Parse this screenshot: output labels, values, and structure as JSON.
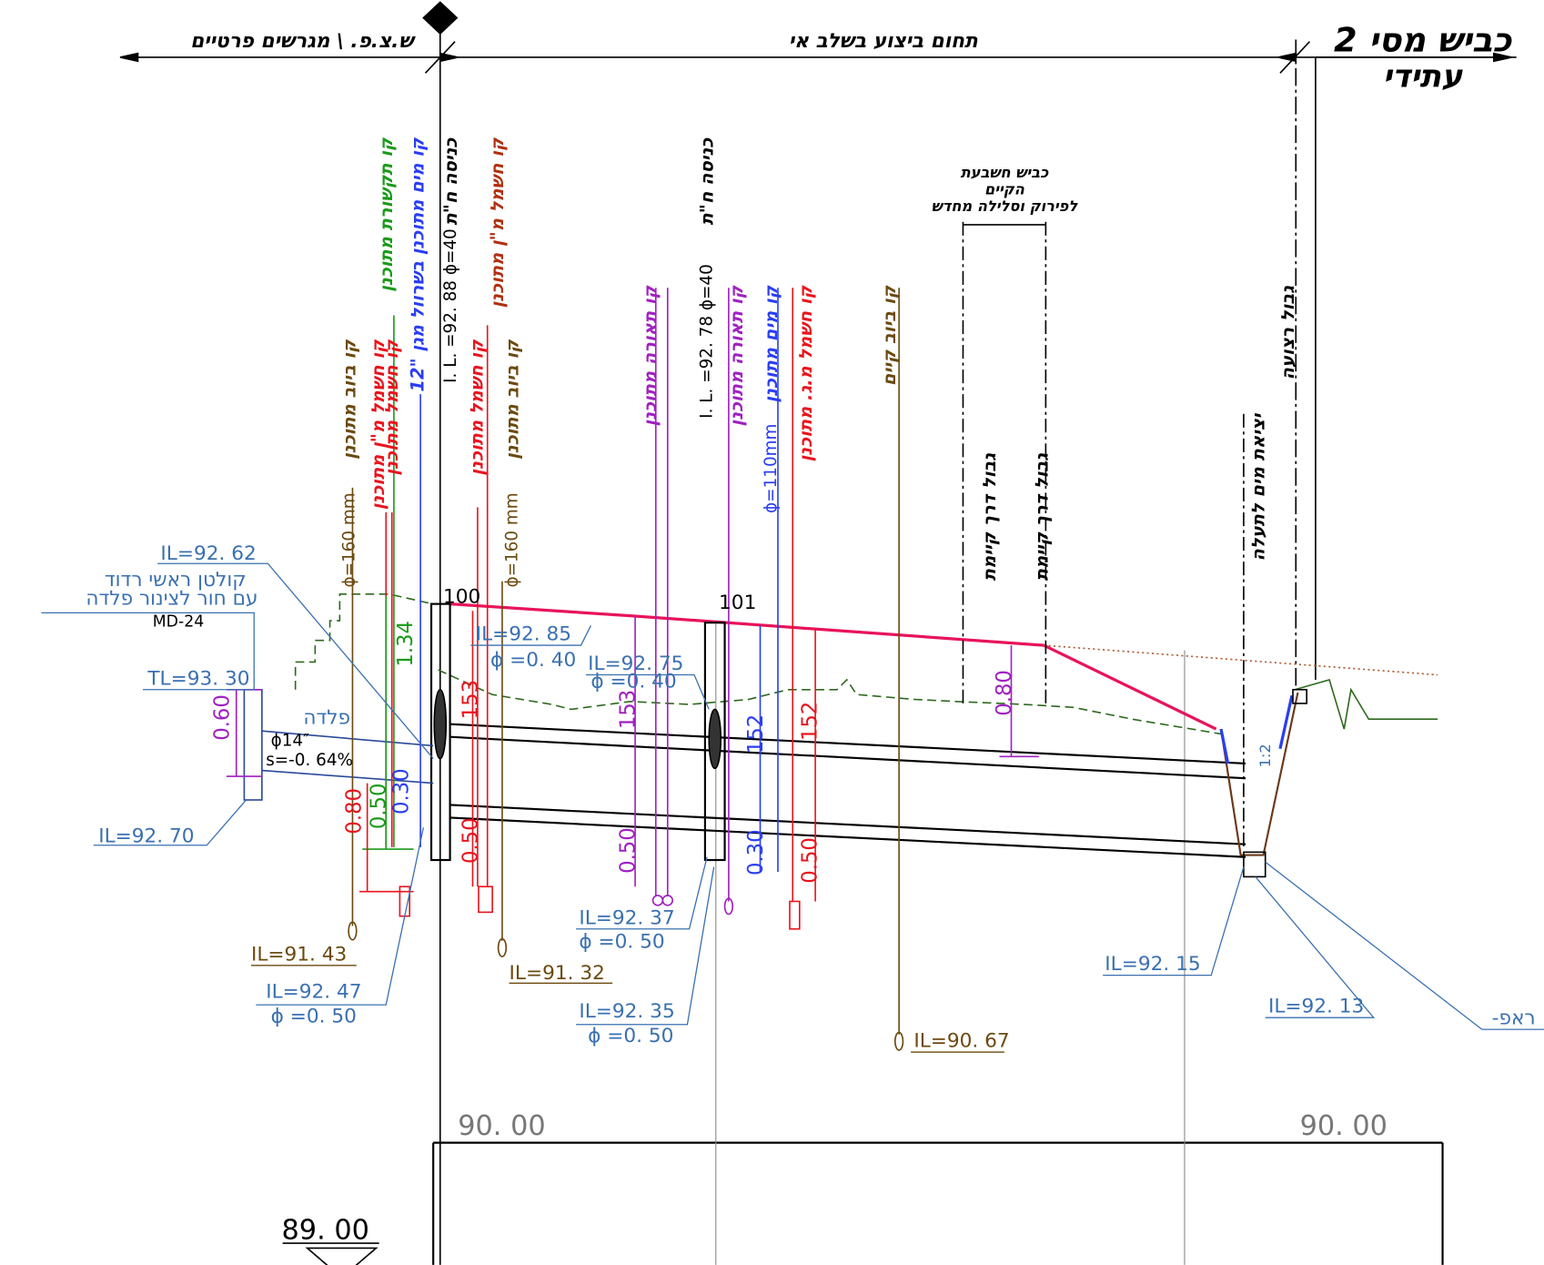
{
  "header": {
    "left": "ש.צ.פ. \\ מגרשים פרטיים",
    "center": "תחום ביצוע בשלב אי",
    "road": "כביש מסי 2",
    "road_note": "עתידי"
  },
  "pavement_note": [
    "כביש חשבעת",
    "הקיים",
    "לפירוק וסלילה מחדש"
  ],
  "vertical_labels": [
    "קו ביוב מתוכנן",
    "ϕ=160 mm",
    "קו חשמל מ\"ן מתוכנן",
    "קו חשמל מתוכנן",
    "קו תקשורת מתוכנן",
    "קו מים מתוכנן בשרוול מגן \"12",
    "כניסה ח\"ת",
    "I. L. =92. 88 ϕ=40",
    "קו חשמל מ\"ן מתוכנן",
    "קו חשמל מתוכנן",
    "קו ביוב מתוכנן",
    "ϕ=160 mm",
    "קו תאורה מתוכנן",
    "כניסה ח\"ת",
    "I. L. =92. 78 ϕ=40",
    "קו תאורה מתוכנן",
    "קו מים מתוכנן",
    "ϕ=110mm",
    "קו חשמל מ.ג. מתוכנן",
    "קו ביוב קיים",
    "גבול דרך קיימת",
    "גבול דרך קיימת",
    "יציאת מים לתעלה",
    "גבול רצועה"
  ],
  "annotations": [
    "IL=92. 62",
    "קולטן ראשי רדוד",
    "עם חור לצינור פלדה",
    "MD-24",
    "TL=93. 30",
    "פלדה",
    "ϕ14″",
    "s=-0. 64%",
    "IL=92. 70",
    "IL=91. 43",
    "IL=92. 47",
    "ϕ =0. 50",
    "IL=92. 85",
    "ϕ =0. 40",
    "IL=92. 75",
    "ϕ =0. 40",
    "IL=92. 37",
    "ϕ =0. 50",
    "IL=92. 35",
    "ϕ =0. 50",
    "IL=91. 32",
    "IL=90. 67",
    "IL=92. 15",
    "IL=92. 13",
    "-ראפ"
  ],
  "dimensions": [
    "1.34",
    "0.60",
    "0.80",
    "0.50",
    "0.30",
    "153",
    "0.50",
    "153",
    "0.50",
    "152",
    "0.30",
    "152",
    "0.50",
    "0.80",
    "1:2"
  ],
  "stations": [
    "100",
    "101"
  ],
  "levels": [
    "90. 00",
    "90. 00",
    "89. 00"
  ]
}
